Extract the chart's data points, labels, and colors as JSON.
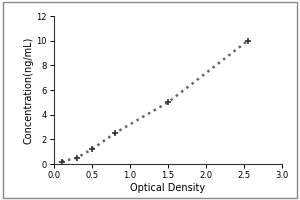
{
  "x": [
    0.1,
    0.3,
    0.5,
    0.8,
    1.5,
    2.55
  ],
  "y": [
    0.2,
    0.5,
    1.2,
    2.5,
    5.0,
    10.0
  ],
  "xlabel": "Optical Density",
  "ylabel": "Concentration(ng/mL)",
  "xlim": [
    0,
    3
  ],
  "ylim": [
    0,
    12
  ],
  "xticks": [
    0,
    0.5,
    1,
    1.5,
    2,
    2.5,
    3
  ],
  "yticks": [
    0,
    2,
    4,
    6,
    8,
    10,
    12
  ],
  "line_color": "#666666",
  "marker_color": "#333333",
  "marker": "+",
  "marker_size": 5,
  "line_style": ":",
  "line_width": 1.8,
  "background_color": "#ffffff",
  "tick_fontsize": 6,
  "label_fontsize": 7,
  "outer_box_color": "#888888"
}
